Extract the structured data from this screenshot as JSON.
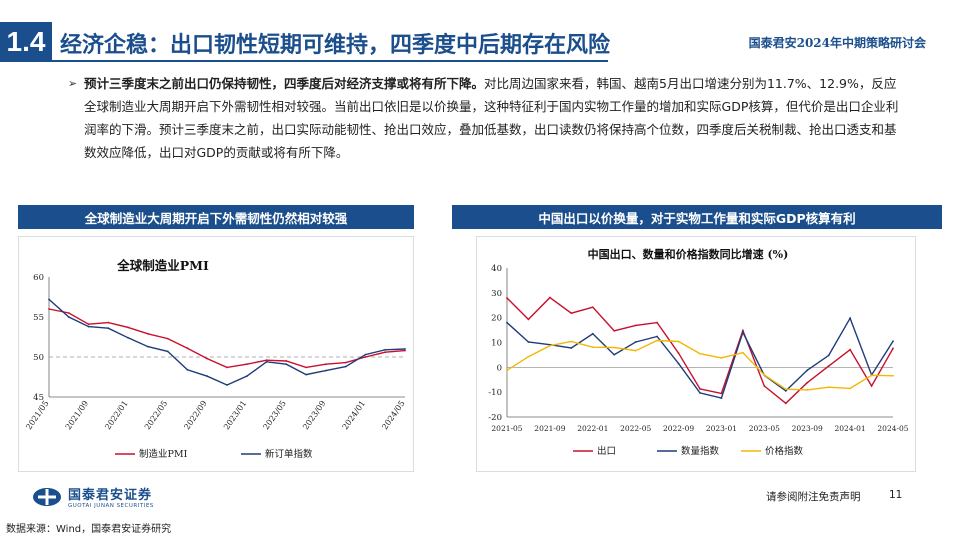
{
  "header": {
    "section_number": "1.4",
    "title": "经济企稳：出口韧性短期可维持，四季度中后期存在风险",
    "conference": "国泰君安2024年中期策略研讨会"
  },
  "bullet": {
    "marker": "➢",
    "bold_text": "预计三季度末之前出口仍保持韧性，四季度后对经济支撑或将有所下降。",
    "body_text": "对比周边国家来看，韩国、越南5月出口增速分别为11.7%、12.9%，反应全球制造业大周期开启下外需韧性相对较强。当前出口依旧是以价换量，这种特征利于国内实物工作量的增加和实际GDP核算，但代价是出口企业利润率的下滑。预计三季度末之前，出口实际动能韧性、抢出口效应，叠加低基数，出口读数仍将保持高个位数，四季度后关税制裁、抢出口透支和基数效应降低，出口对GDP的贡献或将有所下降。"
  },
  "left_panel": {
    "banner": "全球制造业大周期开启下外需韧性仍然相对较强"
  },
  "right_panel": {
    "banner": "中国出口以价换量，对于实物工作量和实际GDP核算有利"
  },
  "footer": {
    "logo_cn": "国泰君安证券",
    "logo_en": "GUOTAI JUNAN SECURITIES",
    "disclaimer": "请参阅附注免责声明",
    "page_number": "11",
    "source": "数据来源：Wind，国泰君安证券研究"
  },
  "colors": {
    "brand": "#1b4e8c",
    "red": "#c8102e",
    "navy": "#1f3c7a",
    "gold": "#f2b705"
  },
  "chart_data": [
    {
      "type": "line",
      "title": "全球制造业PMI",
      "x": [
        "2021/05",
        "2021/07",
        "2021/09",
        "2021/11",
        "2022/01",
        "2022/03",
        "2022/05",
        "2022/07",
        "2022/09",
        "2022/11",
        "2023/01",
        "2023/03",
        "2023/05",
        "2023/07",
        "2023/09",
        "2023/11",
        "2024/01",
        "2024/03",
        "2024/05"
      ],
      "x_tick_labels": [
        "2021/05",
        "2021/09",
        "2022/01",
        "2022/05",
        "2022/09",
        "2023/01",
        "2023/05",
        "2023/09",
        "2024/01",
        "2024/05"
      ],
      "ylim": [
        45,
        60
      ],
      "y_ticks": [
        45,
        50,
        55,
        60
      ],
      "reference_line": 50,
      "series": [
        {
          "name": "制造业PMI",
          "color": "#c8102e",
          "values": [
            56.0,
            55.5,
            54.1,
            54.3,
            53.7,
            52.9,
            52.3,
            51.1,
            49.8,
            48.7,
            49.1,
            49.6,
            49.5,
            48.7,
            49.1,
            49.3,
            50.0,
            50.6,
            50.8
          ]
        },
        {
          "name": "新订单指数",
          "color": "#1f3c7a",
          "values": [
            57.2,
            55.0,
            53.8,
            53.6,
            52.4,
            51.3,
            50.7,
            48.4,
            47.6,
            46.5,
            47.6,
            49.4,
            49.1,
            47.8,
            48.3,
            48.8,
            50.3,
            50.9,
            51.0
          ]
        }
      ],
      "legend_position": "bottom"
    },
    {
      "type": "line",
      "title": "中国出口、数量和价格指数同比增速 (%)",
      "x": [
        "2021-05",
        "2021-07",
        "2021-09",
        "2021-11",
        "2022-01",
        "2022-03",
        "2022-05",
        "2022-07",
        "2022-09",
        "2022-11",
        "2023-01",
        "2023-03",
        "2023-05",
        "2023-07",
        "2023-09",
        "2023-11",
        "2024-01",
        "2024-03",
        "2024-05"
      ],
      "x_tick_labels": [
        "2021-05",
        "2021-09",
        "2022-01",
        "2022-05",
        "2022-09",
        "2023-01",
        "2023-05",
        "2023-09",
        "2024-01",
        "2024-05"
      ],
      "ylim": [
        -20,
        40
      ],
      "y_ticks": [
        -20,
        -10,
        0,
        10,
        20,
        30,
        40
      ],
      "series": [
        {
          "name": "出口",
          "color": "#c8102e",
          "values": [
            27.9,
            19.3,
            28.1,
            21.8,
            24.2,
            14.7,
            16.9,
            18.0,
            5.7,
            -8.7,
            -10.5,
            14.8,
            -7.5,
            -14.5,
            -6.2,
            0.5,
            7.1,
            -7.5,
            7.6
          ]
        },
        {
          "name": "数量指数",
          "color": "#1f3c7a",
          "values": [
            18.0,
            10.2,
            9.1,
            7.8,
            13.5,
            5.1,
            10.2,
            12.4,
            1.5,
            -10.3,
            -12.4,
            14.1,
            -3.2,
            -9.5,
            -1.2,
            4.8,
            19.8,
            -3.1,
            10.5
          ]
        },
        {
          "name": "价格指数",
          "color": "#f2b705",
          "values": [
            -1.2,
            4.3,
            8.7,
            10.4,
            8.1,
            8.0,
            6.7,
            10.8,
            10.4,
            5.5,
            3.8,
            5.9,
            -3.1,
            -8.8,
            -9.1,
            -8.0,
            -8.5,
            -3.2,
            -3.4
          ]
        }
      ],
      "legend_position": "bottom"
    }
  ]
}
